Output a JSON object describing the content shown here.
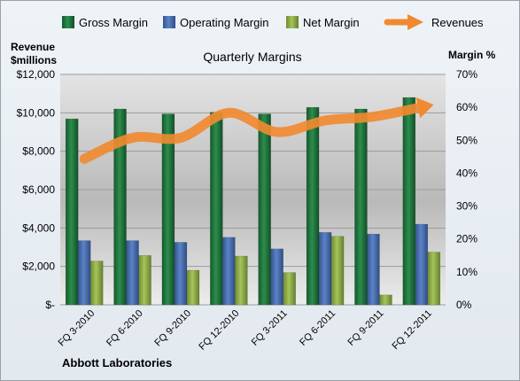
{
  "legend": {
    "items": [
      {
        "label": "Gross Margin",
        "color": "#1f7a3e",
        "kind": "bar"
      },
      {
        "label": "Operating Margin",
        "color": "#4a6fb5",
        "kind": "bar"
      },
      {
        "label": "Net Margin",
        "color": "#8fae47",
        "kind": "bar"
      },
      {
        "label": "Revenues",
        "color": "#f08a30",
        "kind": "arrow"
      }
    ]
  },
  "left_axis_title_line1": "Revenue",
  "left_axis_title_line2": "$millions",
  "right_axis_title": "Margin %",
  "footer": "Abbott Laboratories",
  "chart_data": {
    "type": "bar",
    "title": "Quarterly Margins",
    "categories": [
      "FQ 3-2010",
      "FQ 6-2010",
      "FQ 9-2010",
      "FQ 12-2010",
      "FQ 3-2011",
      "FQ 6-2011",
      "FQ 9-2011",
      "FQ 12-2011"
    ],
    "series": [
      {
        "name": "Gross Margin",
        "axis": "right",
        "color": "#1f7a3e",
        "values": [
          56.5,
          59.5,
          58,
          58.5,
          58,
          60,
          59.5,
          63
        ]
      },
      {
        "name": "Operating Margin",
        "axis": "right",
        "color": "#4a6fb5",
        "values": [
          19.5,
          19.5,
          19,
          20.5,
          17,
          22,
          21.5,
          24.5
        ]
      },
      {
        "name": "Net Margin",
        "axis": "right",
        "color": "#8fae47",
        "values": [
          13.3,
          15,
          10.5,
          14.8,
          9.8,
          20.8,
          3,
          16
        ]
      },
      {
        "name": "Revenues",
        "type": "line",
        "axis": "left",
        "color": "#f08a30",
        "values": [
          7600,
          8700,
          8700,
          10000,
          9000,
          9600,
          9800,
          10300
        ]
      }
    ],
    "y_left": {
      "min": 0,
      "max": 12000,
      "ticks": [
        "$-",
        "$2,000",
        "$4,000",
        "$6,000",
        "$8,000",
        "$10,000",
        "$12,000"
      ]
    },
    "y_right": {
      "min": 0,
      "max": 70,
      "ticks": [
        "0%",
        "10%",
        "20%",
        "30%",
        "40%",
        "50%",
        "60%",
        "70%"
      ]
    }
  }
}
